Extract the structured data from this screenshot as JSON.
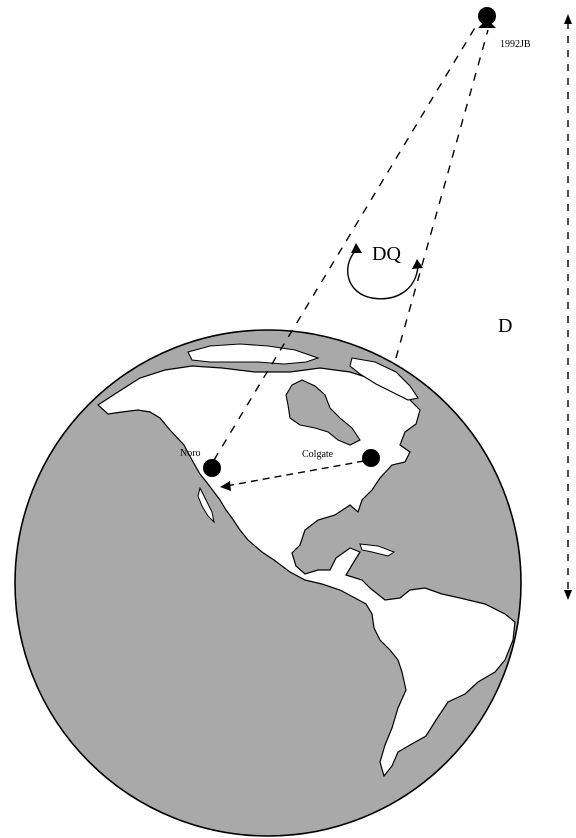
{
  "labels": {
    "object": "1992JB",
    "dq": "DQ",
    "distance": "D",
    "site_left": "Noro",
    "site_right": "Colgate"
  },
  "colors": {
    "ocean": "#a9a9a9",
    "land": "#ffffff",
    "ink": "#000000"
  }
}
